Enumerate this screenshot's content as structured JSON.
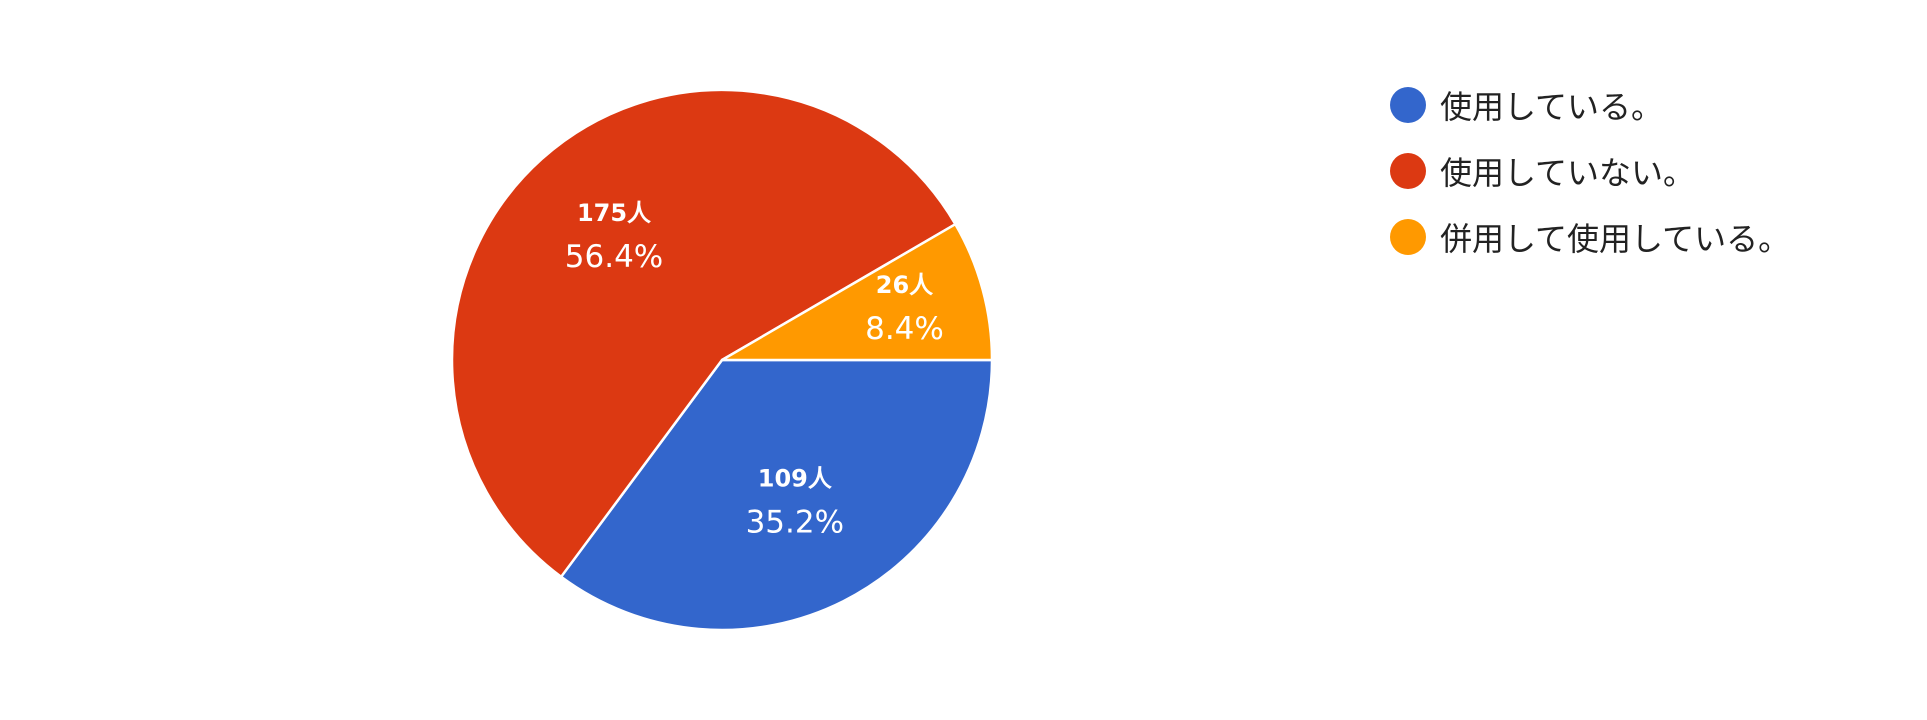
{
  "chart_data": {
    "type": "pie",
    "slices": [
      {
        "label": "使用している。",
        "count_label": "109人",
        "value": 109,
        "percent_label": "35.2%",
        "color": "#3366cc"
      },
      {
        "label": "使用していない。",
        "count_label": "175人",
        "value": 175,
        "percent_label": "56.4%",
        "color": "#dc3912"
      },
      {
        "label": "併用して使用している。",
        "count_label": "26人",
        "value": 26,
        "percent_label": "8.4%",
        "color": "#ff9900"
      }
    ],
    "legend_position": "top-right"
  }
}
